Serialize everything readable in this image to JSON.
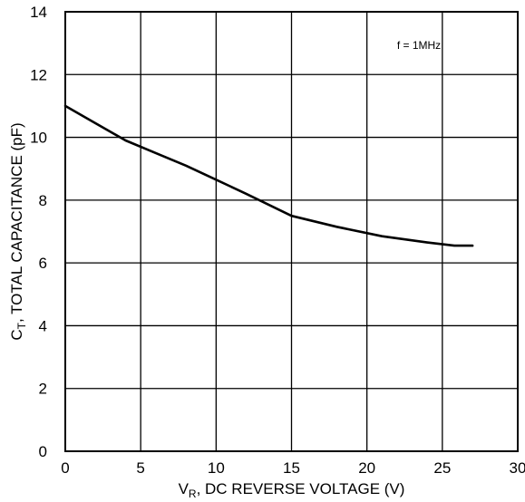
{
  "chart_data": {
    "type": "line",
    "xlim": [
      0,
      30
    ],
    "ylim": [
      0,
      14
    ],
    "x_ticks": [
      "0",
      "5",
      "10",
      "15",
      "20",
      "25",
      "30"
    ],
    "y_ticks": [
      "0",
      "2",
      "4",
      "6",
      "8",
      "10",
      "12",
      "14"
    ],
    "grid": true,
    "xlabel": {
      "symbol": "V",
      "subscript": "R",
      "text": ", DC REVERSE VOLTAGE (V)"
    },
    "ylabel": {
      "symbol": "C",
      "subscript": "T",
      "text": ", TOTAL CAPACITANCE (pF)"
    },
    "annotation": "f = 1MHz",
    "series": [
      {
        "x": [
          0,
          2,
          4,
          6,
          8,
          10,
          12,
          15,
          18,
          21,
          24,
          25.8,
          27
        ],
        "y": [
          11.0,
          10.45,
          9.9,
          9.5,
          9.1,
          8.65,
          8.2,
          7.5,
          7.15,
          6.85,
          6.65,
          6.55,
          6.55
        ]
      }
    ]
  }
}
